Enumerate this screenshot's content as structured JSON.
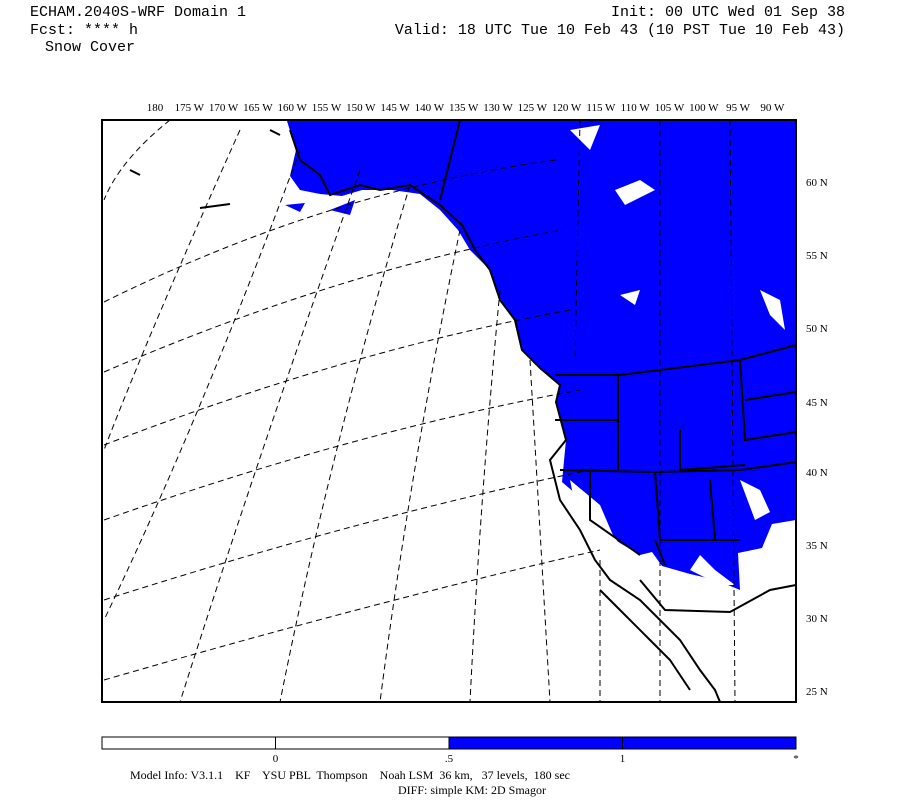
{
  "header": {
    "title": "ECHAM.2040S-WRF Domain 1",
    "forecast": "Fcst: **** h",
    "field": "Snow Cover",
    "init": "Init: 00 UTC Wed 01 Sep 38",
    "valid": "Valid: 18 UTC Tue 10 Feb 43 (10 PST Tue 10 Feb 43)"
  },
  "map": {
    "lon_labels": [
      "180",
      "175 W",
      "170 W",
      "165 W",
      "160 W",
      "155 W",
      "150 W",
      "145 W",
      "140 W",
      "135 W",
      "130 W",
      "125 W",
      "120 W",
      "115 W",
      "110 W",
      "105 W",
      "100 W",
      "95 W",
      "90 W"
    ],
    "lat_labels": [
      "60 N",
      "55 N",
      "50 N",
      "45 N",
      "40 N",
      "35 N",
      "30 N",
      "25 N"
    ],
    "fill_color": "#0000ff"
  },
  "colorbar": {
    "labels": [
      "0",
      ".5",
      "1",
      "*"
    ],
    "colors": [
      "#ffffff",
      "#ffffff",
      "#0000ff",
      "#0000ff"
    ]
  },
  "footer": {
    "model_info": "Model Info: V3.1.1    KF    YSU PBL  Thompson    Noah LSM  36 km,   37 levels,  180 sec",
    "diff": "DIFF: simple KM: 2D Smagor"
  }
}
